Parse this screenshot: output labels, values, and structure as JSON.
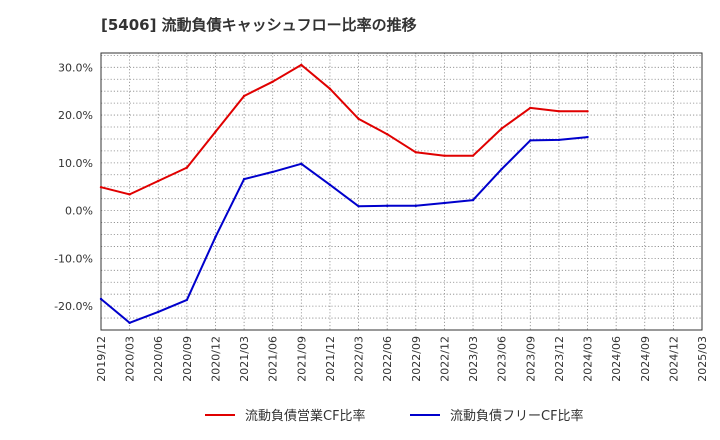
{
  "chart_data": {
    "type": "line",
    "title": "[5406]  流動負債キャッシュフロー比率の推移",
    "xlabel": "",
    "ylabel": "",
    "ylim": [
      -25,
      33
    ],
    "grid": true,
    "legend_position": "bottom-center",
    "categories": [
      "2019/12",
      "2020/03",
      "2020/06",
      "2020/09",
      "2020/12",
      "2021/03",
      "2021/06",
      "2021/09",
      "2021/12",
      "2022/03",
      "2022/06",
      "2022/09",
      "2022/12",
      "2023/03",
      "2023/06",
      "2023/09",
      "2023/12",
      "2024/03",
      "2024/06",
      "2024/09",
      "2024/12",
      "2025/03"
    ],
    "y_ticks": [
      -20,
      -10,
      0,
      10,
      20,
      30
    ],
    "y_tick_labels": [
      "-20.0%",
      "-10.0%",
      "0.0%",
      "10.0%",
      "20.0%",
      "30.0%"
    ],
    "series": [
      {
        "name": "流動負債営業CF比率",
        "color": "#e00000",
        "values": [
          4.9,
          3.4,
          6.2,
          9.0,
          16.5,
          24.0,
          27.0,
          30.5,
          25.5,
          19.2,
          16.0,
          12.2,
          11.5,
          11.5,
          17.2,
          21.5,
          20.8,
          20.8,
          null,
          null,
          null,
          null
        ]
      },
      {
        "name": "流動負債フリーCF比率",
        "color": "#0000cc",
        "values": [
          -18.5,
          -23.5,
          -21.2,
          -18.7,
          -5.5,
          6.6,
          8.1,
          9.8,
          5.4,
          0.9,
          1.0,
          1.0,
          1.6,
          2.2,
          8.7,
          14.7,
          14.8,
          15.4,
          null,
          null,
          null,
          null
        ]
      }
    ]
  }
}
